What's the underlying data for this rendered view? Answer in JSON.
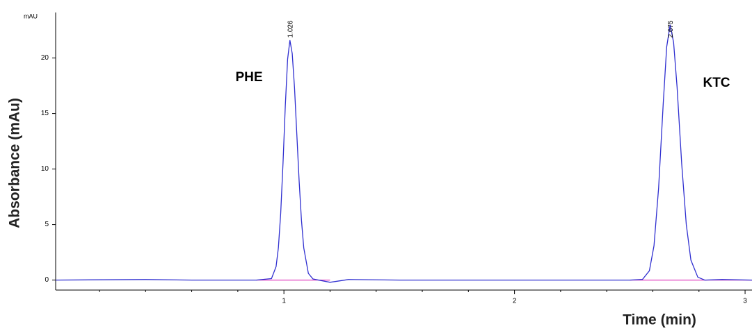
{
  "chart_data": {
    "type": "line",
    "xlabel": "Time (min)",
    "ylabel": "Absorbance (mAu)",
    "yunit": "mAU",
    "annotations": [
      "PHE",
      "KTC"
    ],
    "peak_times": [
      1.026,
      2.675
    ],
    "xlim": [
      0.01,
      3.03
    ],
    "ylim": [
      -0.9,
      24.1
    ],
    "xticks": [
      1,
      2,
      3
    ],
    "yticks": [
      0,
      5,
      10,
      15,
      20
    ],
    "xminorticks": [
      0.2,
      0.4,
      0.6,
      0.8,
      1.2,
      1.4,
      1.6,
      1.8,
      2.2,
      2.4,
      2.6,
      2.8
    ],
    "series": [
      {
        "color": "#2f2fd0",
        "x": [
          0.01,
          0.4,
          0.6,
          0.88,
          0.946,
          0.966,
          0.976,
          0.986,
          0.996,
          1.006,
          1.016,
          1.026,
          1.036,
          1.046,
          1.056,
          1.066,
          1.076,
          1.086,
          1.106,
          1.126,
          1.2,
          1.28,
          1.5,
          2.5,
          2.555,
          2.585,
          2.605,
          2.625,
          2.645,
          2.66,
          2.675,
          2.69,
          2.705,
          2.725,
          2.745,
          2.765,
          2.795,
          2.825,
          2.9,
          3.03
        ],
        "values": [
          0,
          0.05,
          0,
          0,
          0.13,
          1.21,
          2.92,
          6.0,
          10.5,
          15.7,
          19.9,
          21.6,
          20.4,
          17.3,
          13.1,
          8.9,
          5.4,
          2.9,
          0.6,
          0.1,
          -0.2,
          0.05,
          0,
          0,
          0.06,
          0.84,
          3.1,
          8.3,
          15.9,
          21.0,
          23.0,
          21.4,
          17.4,
          10.5,
          5.0,
          1.8,
          0.26,
          0,
          0.05,
          0
        ]
      },
      {
        "color": "#e040c0",
        "x": [
          0.88,
          1.2,
          2.0,
          2.5,
          3.03
        ],
        "values": [
          0,
          0,
          null,
          0,
          0
        ]
      }
    ]
  }
}
